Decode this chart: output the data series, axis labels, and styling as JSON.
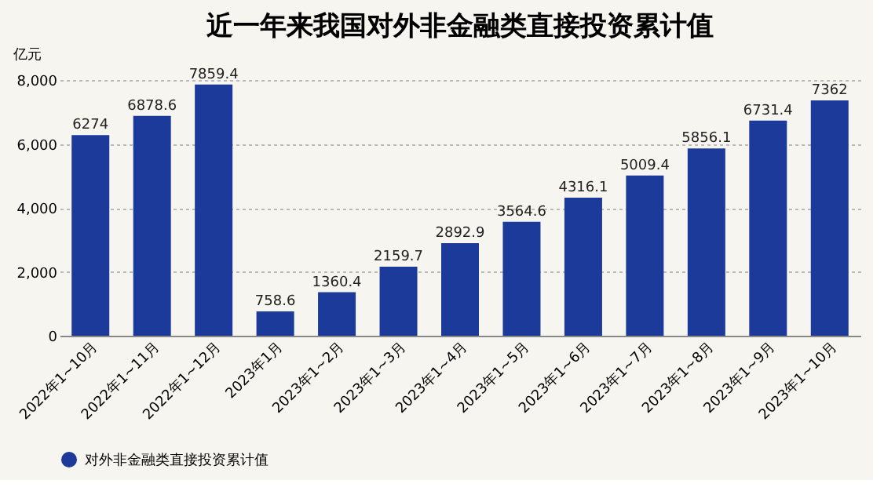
{
  "chart_data": {
    "type": "bar",
    "title": "近一年来我国对外非金融类直接投资累计值",
    "ylabel": "亿元",
    "categories": [
      "2022年1~10月",
      "2022年1~11月",
      "2022年1~12月",
      "2023年1月",
      "2023年1~2月",
      "2023年1~3月",
      "2023年1~4月",
      "2023年1~5月",
      "2023年1~6月",
      "2023年1~7月",
      "2023年1~8月",
      "2023年1~9月",
      "2023年1~10月"
    ],
    "series": [
      {
        "name": "对外非金融类直接投资累计值",
        "color": "#1b3a9a",
        "values": [
          6274,
          6878.6,
          7859.4,
          758.6,
          1360.4,
          2159.7,
          2892.9,
          3564.6,
          4316.1,
          5009.4,
          5856.1,
          6731.4,
          7362
        ]
      }
    ],
    "ylim": [
      0,
      8000
    ],
    "yticks": [
      {
        "value": 0,
        "label": "0"
      },
      {
        "value": 2000,
        "label": "2,000"
      },
      {
        "value": 4000,
        "label": "4,000"
      },
      {
        "value": 6000,
        "label": "6,000"
      },
      {
        "value": 8000,
        "label": "8,000"
      }
    ],
    "grid": "y",
    "legend": "bottom",
    "data_labels": true
  }
}
